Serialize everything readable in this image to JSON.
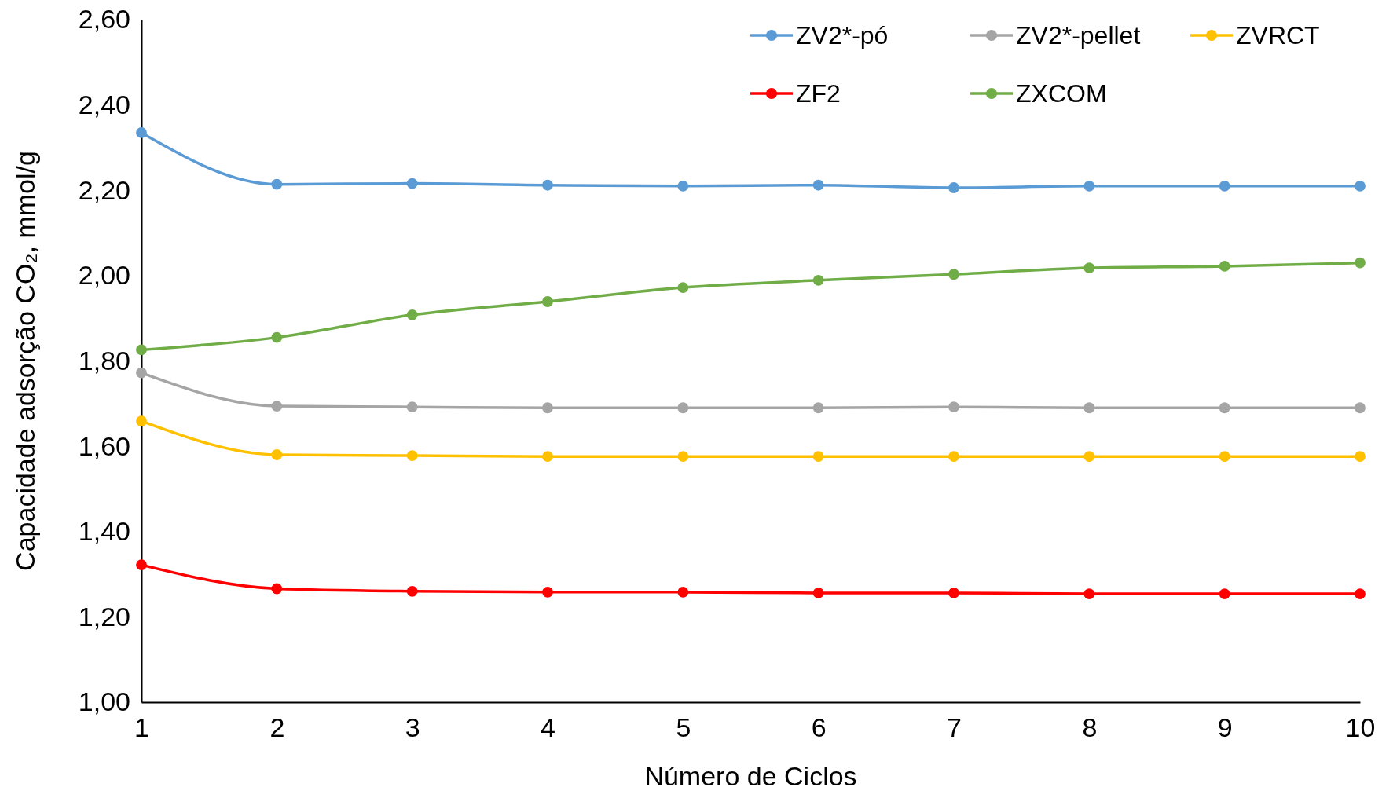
{
  "chart_data": {
    "type": "line",
    "xlabel": "Número de Ciclos",
    "ylabel": "Capacidade adsorção CO₂, mmol/g",
    "x": [
      1,
      2,
      3,
      4,
      5,
      6,
      7,
      8,
      9,
      10
    ],
    "xlim": [
      1,
      10
    ],
    "xticks": [
      1,
      2,
      3,
      4,
      5,
      6,
      7,
      8,
      9,
      10
    ],
    "ylim": [
      1,
      2.6
    ],
    "yticks": [
      {
        "value": 1,
        "label": "1,00"
      },
      {
        "value": 1.2,
        "label": "1,20"
      },
      {
        "value": 1.4,
        "label": "1,40"
      },
      {
        "value": 1.6,
        "label": "1,60"
      },
      {
        "value": 1.8,
        "label": "1,80"
      },
      {
        "value": 2,
        "label": "2,00"
      },
      {
        "value": 2.2,
        "label": "2,20"
      },
      {
        "value": 2.4,
        "label": "2,40"
      },
      {
        "value": 2.6,
        "label": "2,60"
      }
    ],
    "grid": false,
    "legend": "top right",
    "marker": "circle",
    "line_style": "solid",
    "series": [
      {
        "name": "ZV2*-pó",
        "color": "#5b9bd5",
        "values": [
          2.335,
          2.214,
          2.216,
          2.212,
          2.21,
          2.212,
          2.206,
          2.21,
          2.21,
          2.21
        ]
      },
      {
        "name": "ZV2*-pellet",
        "color": "#a5a5a5",
        "values": [
          1.772,
          1.694,
          1.692,
          1.69,
          1.69,
          1.69,
          1.692,
          1.69,
          1.69,
          1.69
        ]
      },
      {
        "name": "ZVRCT",
        "color": "#ffc000",
        "values": [
          1.659,
          1.58,
          1.578,
          1.576,
          1.576,
          1.576,
          1.576,
          1.576,
          1.576,
          1.576
        ]
      },
      {
        "name": "ZF2",
        "color": "#ff0000",
        "values": [
          1.322,
          1.266,
          1.26,
          1.258,
          1.258,
          1.256,
          1.256,
          1.254,
          1.254,
          1.254
        ]
      },
      {
        "name": "ZXCOM",
        "color": "#70ad47",
        "values": [
          1.826,
          1.855,
          1.908,
          1.939,
          1.972,
          1.989,
          2.003,
          2.018,
          2.022,
          2.03
        ]
      }
    ]
  }
}
